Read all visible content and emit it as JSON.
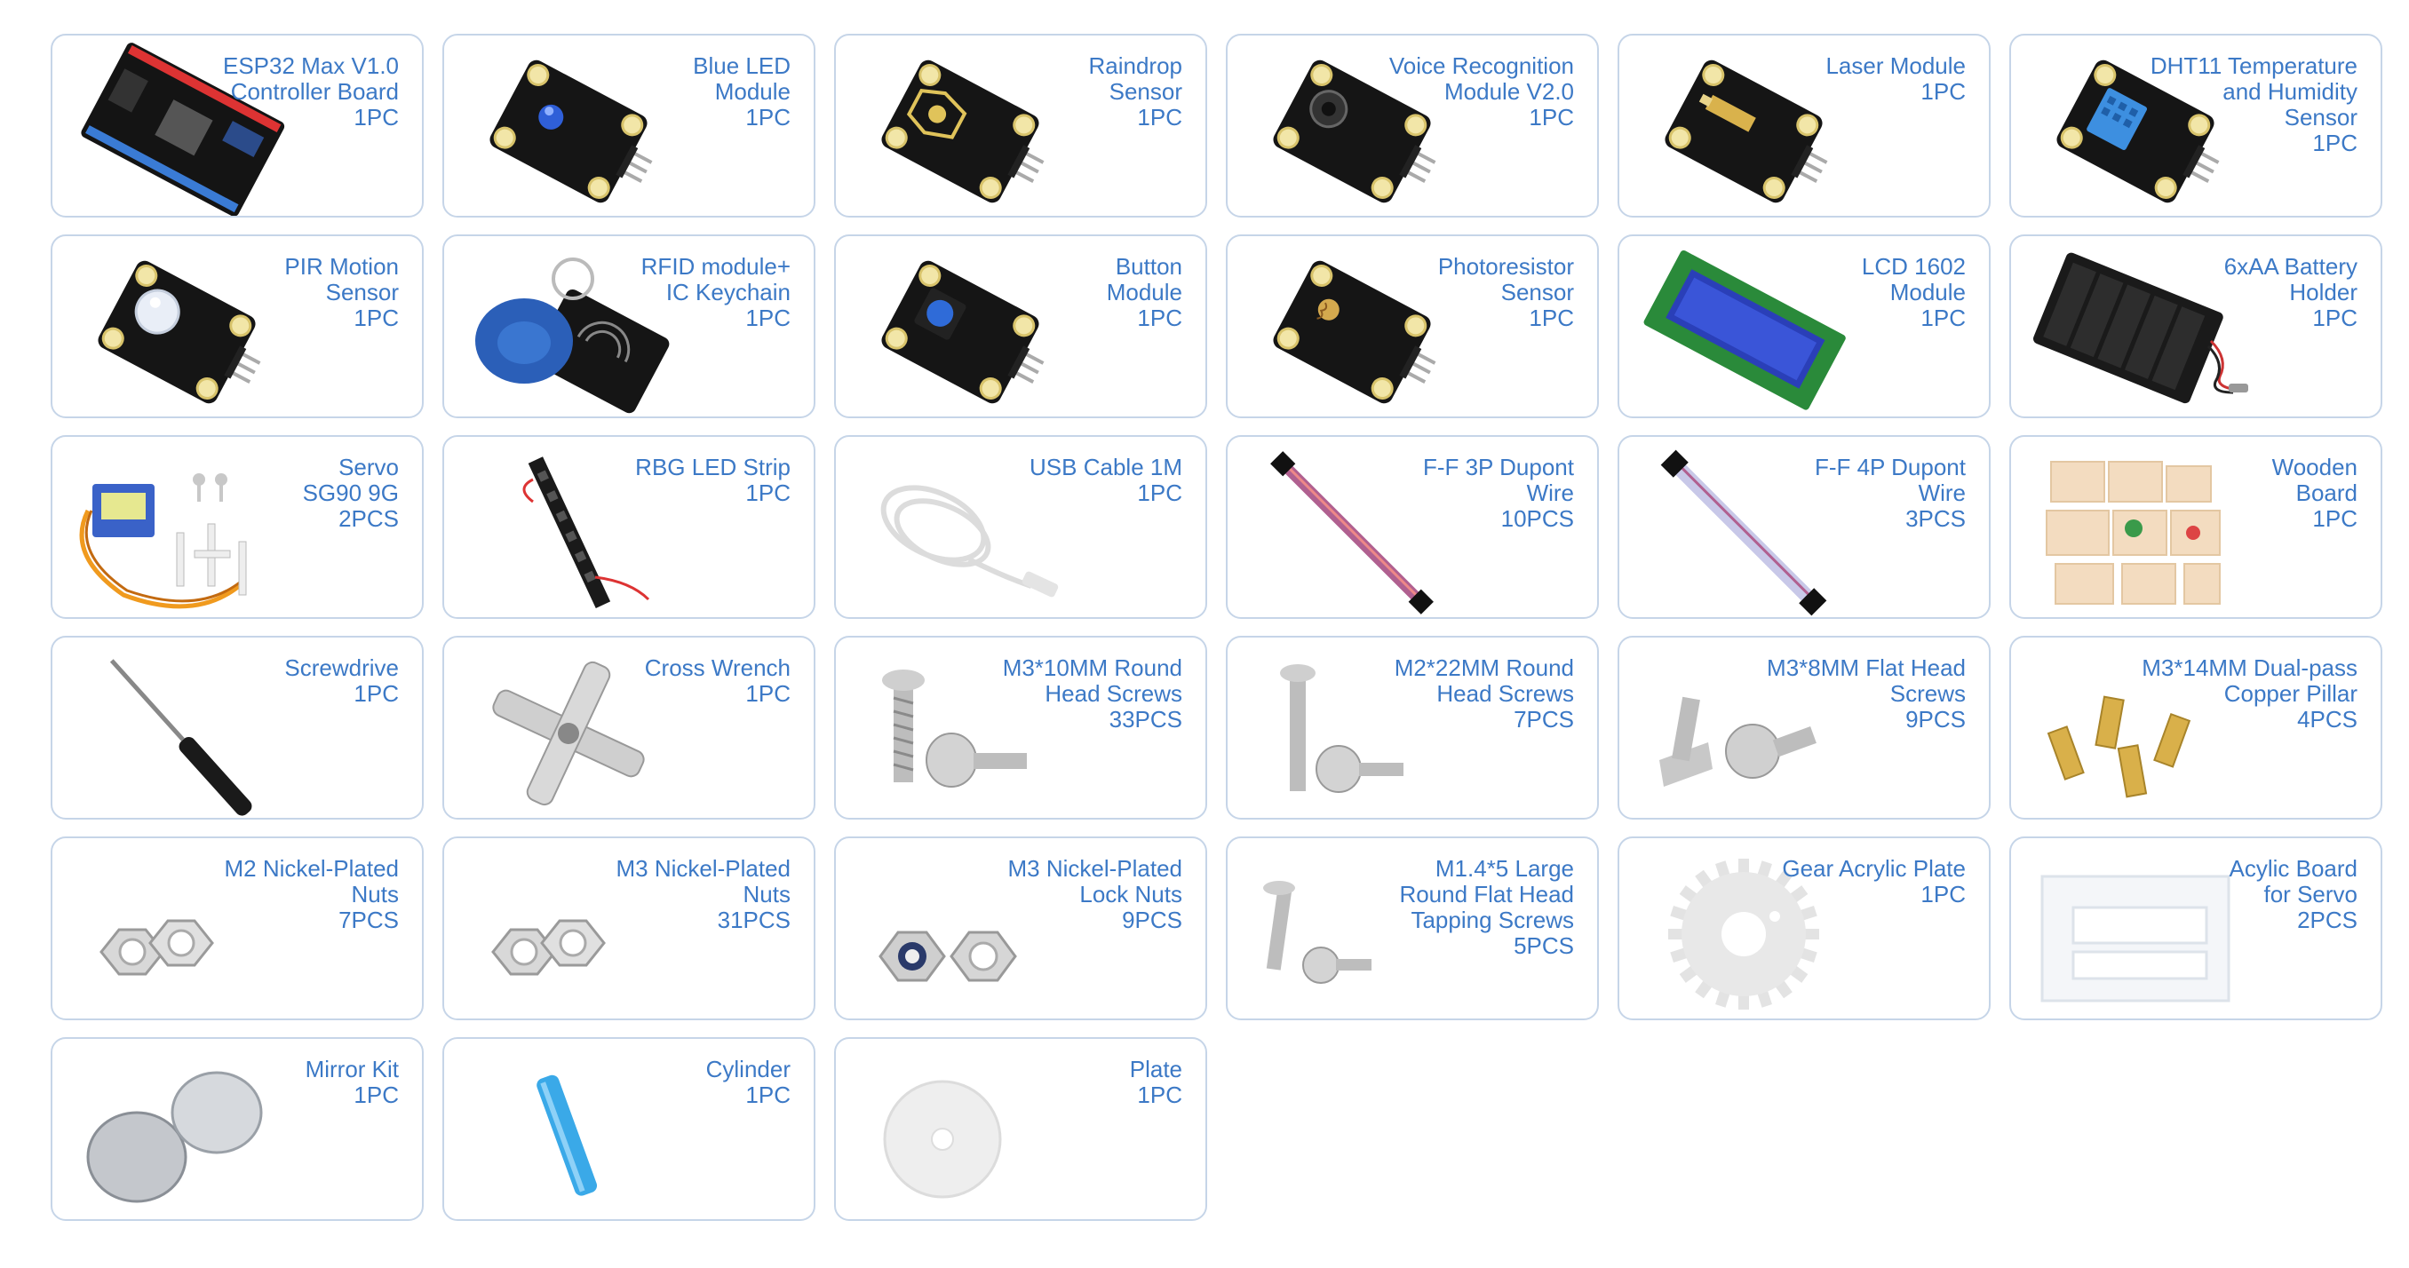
{
  "items": [
    {
      "name": "ESP32 Max V1.0\nController Board",
      "qty": "1PC",
      "icon": "esp32-board-icon"
    },
    {
      "name": "Blue LED\nModule",
      "qty": "1PC",
      "icon": "blue-led-module-icon"
    },
    {
      "name": "Raindrop\nSensor",
      "qty": "1PC",
      "icon": "raindrop-sensor-icon"
    },
    {
      "name": "Voice Recognition\nModule V2.0",
      "qty": "1PC",
      "icon": "voice-recognition-module-icon"
    },
    {
      "name": "Laser Module",
      "qty": "1PC",
      "icon": "laser-module-icon"
    },
    {
      "name": "DHT11 Temperature\nand Humidity\nSensor",
      "qty": "1PC",
      "icon": "dht11-sensor-icon"
    },
    {
      "name": "PIR Motion\nSensor",
      "qty": "1PC",
      "icon": "pir-motion-sensor-icon"
    },
    {
      "name": "RFID module+\nIC Keychain",
      "qty": "1PC",
      "icon": "rfid-module-icon"
    },
    {
      "name": "Button\nModule",
      "qty": "1PC",
      "icon": "button-module-icon"
    },
    {
      "name": "Photoresistor\nSensor",
      "qty": "1PC",
      "icon": "photoresistor-sensor-icon"
    },
    {
      "name": "LCD 1602\nModule",
      "qty": "1PC",
      "icon": "lcd1602-module-icon"
    },
    {
      "name": "6xAA Battery\nHolder",
      "qty": "1PC",
      "icon": "battery-holder-icon"
    },
    {
      "name": "Servo\nSG90 9G",
      "qty": "2PCS",
      "icon": "servo-icon"
    },
    {
      "name": "RBG LED Strip",
      "qty": "1PC",
      "icon": "led-strip-icon"
    },
    {
      "name": "USB Cable 1M",
      "qty": "1PC",
      "icon": "usb-cable-icon"
    },
    {
      "name": "F-F 3P Dupont\nWire",
      "qty": "10PCS",
      "icon": "dupont-wire-3p-icon"
    },
    {
      "name": "F-F 4P Dupont\nWire",
      "qty": "3PCS",
      "icon": "dupont-wire-4p-icon"
    },
    {
      "name": "Wooden\nBoard",
      "qty": "1PC",
      "icon": "wooden-board-icon"
    },
    {
      "name": "Screwdrive",
      "qty": "1PC",
      "icon": "screwdriver-icon"
    },
    {
      "name": "Cross Wrench",
      "qty": "1PC",
      "icon": "cross-wrench-icon"
    },
    {
      "name": "M3*10MM Round\nHead Screws",
      "qty": "33PCS",
      "icon": "round-head-screw-icon"
    },
    {
      "name": "M2*22MM Round\nHead Screws",
      "qty": "7PCS",
      "icon": "long-round-head-screw-icon"
    },
    {
      "name": "M3*8MM Flat Head\nScrews",
      "qty": "9PCS",
      "icon": "flat-head-screw-icon"
    },
    {
      "name": "M3*14MM Dual-pass\nCopper Pillar",
      "qty": "4PCS",
      "icon": "copper-pillar-icon"
    },
    {
      "name": "M2 Nickel-Plated\nNuts",
      "qty": "7PCS",
      "icon": "hex-nut-icon"
    },
    {
      "name": "M3 Nickel-Plated\nNuts",
      "qty": "31PCS",
      "icon": "hex-nut-icon"
    },
    {
      "name": "M3 Nickel-Plated\nLock Nuts",
      "qty": "9PCS",
      "icon": "lock-nut-icon"
    },
    {
      "name": "M1.4*5 Large\nRound Flat Head\nTapping Screws",
      "qty": "5PCS",
      "icon": "tapping-screw-icon"
    },
    {
      "name": "Gear Acrylic Plate",
      "qty": "1PC",
      "icon": "gear-plate-icon"
    },
    {
      "name": "Acylic Board\nfor Servo",
      "qty": "2PCS",
      "icon": "acrylic-board-icon"
    },
    {
      "name": "Mirror Kit",
      "qty": "1PC",
      "icon": "mirror-kit-icon"
    },
    {
      "name": "Cylinder",
      "qty": "1PC",
      "icon": "cylinder-icon"
    },
    {
      "name": "Plate",
      "qty": "1PC",
      "icon": "plate-icon"
    }
  ]
}
